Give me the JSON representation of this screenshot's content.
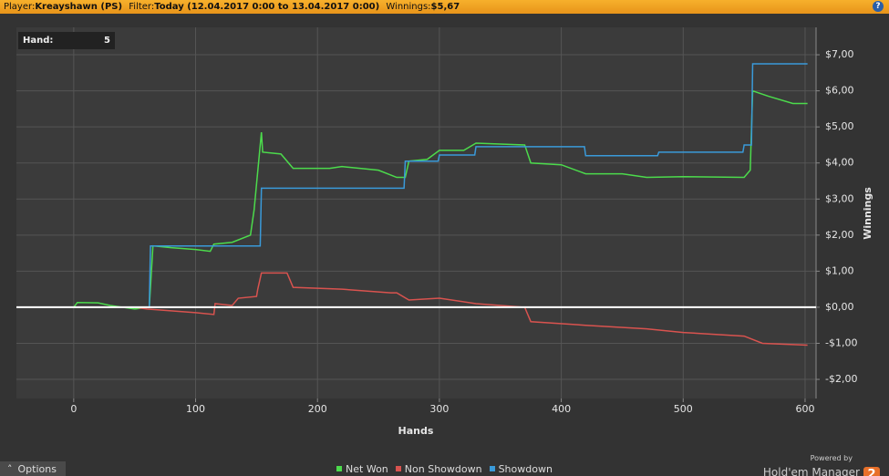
{
  "header": {
    "player_label": "Player:",
    "player": "Kreayshawn (PS)",
    "filter_label": "Filter:",
    "filter": "Today (12.04.2017 0:00 to 13.04.2017 0:00)",
    "winnings_label": "Winnings:",
    "winnings": "$5,67",
    "help": "?"
  },
  "hand_box": {
    "label": "Hand:",
    "value": 5
  },
  "chart_data": {
    "type": "line",
    "xlabel": "Hands",
    "ylabel": "Winnings",
    "xlim": [
      -47,
      609
    ],
    "ylim": [
      -2.53,
      7.76
    ],
    "xticks": [
      0,
      100,
      200,
      300,
      400,
      500,
      600
    ],
    "yticks": [
      {
        "value": 7,
        "label": "$7,00"
      },
      {
        "value": 6,
        "label": "$6,00"
      },
      {
        "value": 5,
        "label": "$5,00"
      },
      {
        "value": 4,
        "label": "$4,00"
      },
      {
        "value": 3,
        "label": "$3,00"
      },
      {
        "value": 2,
        "label": "$2,00"
      },
      {
        "value": 1,
        "label": "$1,00"
      },
      {
        "value": 0,
        "label": "$0,00"
      },
      {
        "value": -1,
        "label": "-$1,00"
      },
      {
        "value": -2,
        "label": "-$2,00"
      }
    ],
    "grid": true,
    "series": [
      {
        "name": "Net Won",
        "color": "#4cdb4c",
        "x": [
          0,
          3,
          20,
          30,
          50,
          62,
          65,
          80,
          100,
          112,
          115,
          130,
          145,
          148,
          154,
          155,
          170,
          180,
          210,
          220,
          250,
          265,
          272,
          275,
          290,
          300,
          320,
          330,
          370,
          375,
          400,
          420,
          450,
          470,
          500,
          550,
          555,
          557,
          570,
          590,
          602
        ],
        "values": [
          0,
          0.13,
          0.12,
          0.05,
          -0.05,
          0,
          1.7,
          1.65,
          1.6,
          1.55,
          1.75,
          1.8,
          2.0,
          2.7,
          4.85,
          4.3,
          4.25,
          3.85,
          3.85,
          3.9,
          3.8,
          3.6,
          3.6,
          4.05,
          4.1,
          4.35,
          4.35,
          4.55,
          4.5,
          4.0,
          3.95,
          3.7,
          3.7,
          3.6,
          3.62,
          3.6,
          3.8,
          6.0,
          5.85,
          5.65,
          5.65
        ]
      },
      {
        "name": "Non Showdown",
        "color": "#d9534f",
        "x": [
          0,
          50,
          60,
          100,
          115,
          116,
          130,
          135,
          150,
          151,
          154,
          175,
          180,
          220,
          260,
          265,
          275,
          300,
          330,
          370,
          375,
          420,
          470,
          500,
          550,
          565,
          602
        ],
        "values": [
          0,
          0,
          -0.05,
          -0.15,
          -0.2,
          0.1,
          0.05,
          0.25,
          0.3,
          0.5,
          0.95,
          0.95,
          0.55,
          0.5,
          0.4,
          0.4,
          0.2,
          0.25,
          0.1,
          0,
          -0.4,
          -0.5,
          -0.6,
          -0.7,
          -0.8,
          -1.0,
          -1.05
        ]
      },
      {
        "name": "Showdown",
        "color": "#3a9ad9",
        "x": [
          0,
          62,
          63,
          153,
          154,
          271,
          272,
          299,
          300,
          329,
          330,
          419,
          420,
          479,
          480,
          549,
          550,
          556,
          557,
          602
        ],
        "values": [
          0,
          0,
          1.7,
          1.7,
          3.3,
          3.3,
          4.05,
          4.05,
          4.22,
          4.22,
          4.45,
          4.45,
          4.2,
          4.2,
          4.3,
          4.3,
          4.5,
          4.5,
          6.75,
          6.75
        ]
      }
    ]
  },
  "footer": {
    "options": "Options",
    "powered_by": "Powered by",
    "brand": "Hold'em Manager",
    "badge": "2"
  }
}
